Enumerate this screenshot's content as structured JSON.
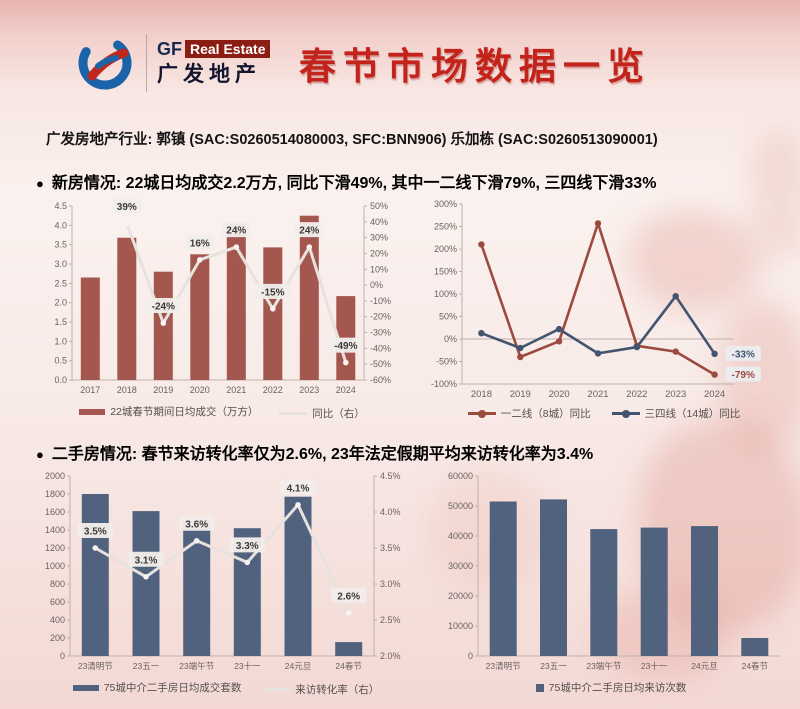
{
  "header": {
    "logo": {
      "gf": "GF",
      "real_estate": "Real Estate",
      "cn": "广发地产"
    },
    "title": "春节市场数据一览",
    "analyst_line": "广发房地产行业: 郭镇 (SAC:S0260514080003, SFC:BNN906) 乐加栋 (SAC:S0260513090001)"
  },
  "sections": [
    {
      "bullet": "●",
      "text": "新房情况: 22城日均成交2.2万方, 同比下滑49%, 其中一二线下滑79%, 三四线下滑33%"
    },
    {
      "bullet": "●",
      "text": "二手房情况: 春节来访转化率仅为2.6%, 23年法定假期平均来访转化率为3.4%"
    }
  ],
  "colors": {
    "accent_red": "#c2231a",
    "bar_brown": "#a3574e",
    "bar_slate": "#51627e",
    "line_red": "#9c4a3e",
    "line_blue": "#42546e",
    "line_gray": "#e7e2de",
    "label_box": "#f1edea"
  },
  "chart_data": [
    {
      "id": "new-home-daily-sales",
      "type": "bar-line",
      "categories": [
        "2017",
        "2018",
        "2019",
        "2020",
        "2021",
        "2022",
        "2023",
        "2024"
      ],
      "left_axis": {
        "min": 0,
        "max": 4.5,
        "step": 0.5,
        "format": "1dp"
      },
      "right_axis": {
        "min": -60,
        "max": 50,
        "step": 10,
        "format": "pct"
      },
      "series": [
        {
          "name": "22城春节期间日均成交（万方）",
          "type": "bar",
          "axis": "left",
          "color": "#a3574e",
          "values": [
            2.65,
            3.68,
            2.8,
            3.25,
            4.03,
            3.43,
            4.25,
            2.17
          ]
        },
        {
          "name": "同比（右）",
          "type": "line",
          "axis": "right",
          "color": "#e7e2de",
          "values": [
            null,
            39,
            -24,
            16,
            24,
            -15,
            24,
            -49
          ],
          "labels": [
            "",
            "39%",
            "-24%",
            "16%",
            "24%",
            "-15%",
            "24%",
            "-49%"
          ]
        }
      ]
    },
    {
      "id": "yoy-by-city-tier",
      "type": "line",
      "categories": [
        "2018",
        "2019",
        "2020",
        "2021",
        "2022",
        "2023",
        "2024"
      ],
      "left_axis": {
        "min": -100,
        "max": 300,
        "step": 50,
        "format": "pct"
      },
      "series": [
        {
          "name": "一二线（8城）同比",
          "type": "line",
          "axis": "left",
          "color": "#9c4a3e",
          "values": [
            210,
            -40,
            -5,
            257,
            -15,
            -28,
            -79
          ],
          "end_label": "-79%"
        },
        {
          "name": "三四线（14城）同比",
          "type": "line",
          "axis": "left",
          "color": "#42546e",
          "values": [
            13,
            -20,
            22,
            -32,
            -18,
            95,
            -33
          ],
          "end_label": "-33%"
        }
      ]
    },
    {
      "id": "secondhand-daily-deals",
      "type": "bar-line",
      "categories": [
        "23清明节",
        "23五一",
        "23端午节",
        "23十一",
        "24元旦",
        "24春节"
      ],
      "left_axis": {
        "min": 0,
        "max": 2000,
        "step": 200,
        "format": "int"
      },
      "right_axis": {
        "min": 2.0,
        "max": 4.5,
        "step": 0.5,
        "format": "pct1"
      },
      "series": [
        {
          "name": "75城中介二手房日均成交套数",
          "type": "bar",
          "axis": "left",
          "color": "#51627e",
          "values": [
            1800,
            1610,
            1510,
            1420,
            1770,
            155
          ]
        },
        {
          "name": "来访转化率（右）",
          "type": "line",
          "axis": "right",
          "color": "#e7e2de",
          "values": [
            3.5,
            3.1,
            3.6,
            3.3,
            4.1,
            2.6
          ],
          "labels": [
            "3.5%",
            "3.1%",
            "3.6%",
            "3.3%",
            "4.1%",
            "2.6%"
          ]
        }
      ]
    },
    {
      "id": "secondhand-daily-visits",
      "type": "bar",
      "categories": [
        "23清明节",
        "23五一",
        "23端午节",
        "23十一",
        "24元旦",
        "24春节"
      ],
      "left_axis": {
        "min": 0,
        "max": 60000,
        "step": 10000,
        "format": "int"
      },
      "series": [
        {
          "name": "75城中介二手房日均来访次数",
          "type": "bar",
          "axis": "left",
          "color": "#51627e",
          "values": [
            51500,
            52200,
            42300,
            42800,
            43300,
            6000
          ]
        }
      ]
    }
  ]
}
